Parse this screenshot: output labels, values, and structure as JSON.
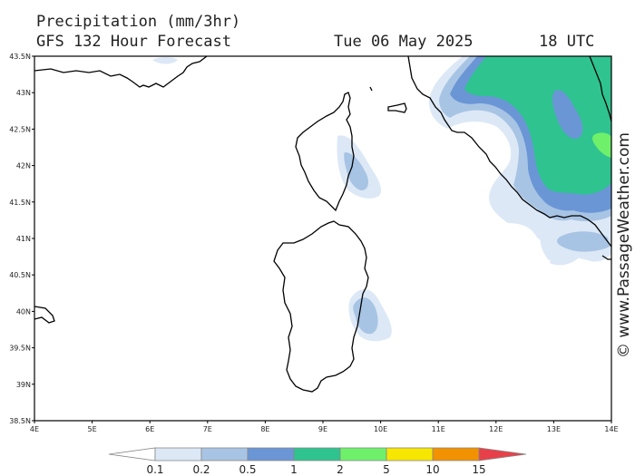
{
  "header": {
    "title": "Precipitation (mm/3hr)",
    "subtitle": "GFS 132 Hour Forecast",
    "date": "Tue 06 May 2025",
    "time": "18 UTC"
  },
  "credit": "© www.PassageWeather.com",
  "map": {
    "lat_labels": [
      "43.5N",
      "43N",
      "42.5N",
      "42N",
      "41.5N",
      "41N",
      "40.5N",
      "40N",
      "39.5N",
      "39N",
      "38.5N"
    ],
    "lon_labels": [
      "4E",
      "5E",
      "6E",
      "7E",
      "8E",
      "9E",
      "10E",
      "11E",
      "12E",
      "13E",
      "14E"
    ],
    "lat_range": [
      38.5,
      43.5
    ],
    "lon_range": [
      4,
      14
    ]
  },
  "legend": {
    "colors": [
      "#ffffff",
      "#dce8f6",
      "#a8c4e4",
      "#6a96d6",
      "#2fc38f",
      "#6ef06a",
      "#f7e600",
      "#f29200",
      "#e8404a"
    ],
    "labels": [
      "0.1",
      "0.2",
      "0.5",
      "1",
      "2",
      "5",
      "10",
      "15"
    ]
  }
}
